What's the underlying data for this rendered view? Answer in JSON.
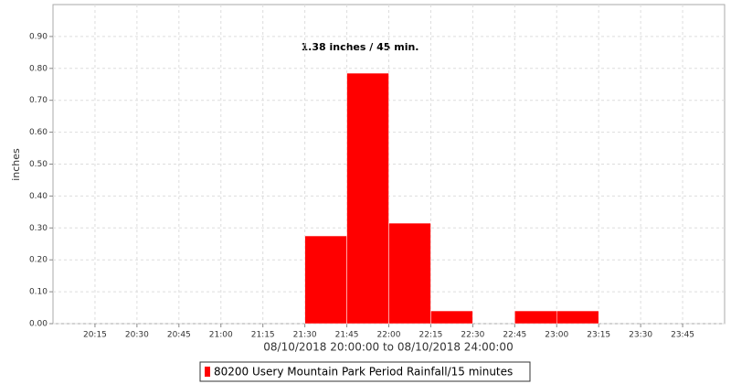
{
  "chart_data": {
    "type": "histogram",
    "annotation": "1.38 inches / 45 min.",
    "y_label": "inches",
    "x_label": "08/10/2018 20:00:00 to 08/10/2018 24:00:00",
    "bins": [
      "21:30",
      "21:45",
      "22:00",
      "22:15",
      "22:30",
      "22:45",
      "23:00",
      "23:15"
    ],
    "series": [
      {
        "name": "80200 Usery Mountain Park Period Rainfall/15 minutes",
        "color": "#ff0000",
        "values": [
          0.275,
          0.785,
          0.315,
          0.04,
          0,
          0.04,
          0.04
        ]
      }
    ],
    "xlim": [
      "20:00",
      "24:00"
    ],
    "xticks": [
      "20:15",
      "20:30",
      "20:45",
      "21:00",
      "21:15",
      "21:30",
      "21:45",
      "22:00",
      "22:15",
      "22:30",
      "22:45",
      "23:00",
      "23:15",
      "23:30",
      "23:45"
    ],
    "ylim": [
      0,
      1.0
    ],
    "yticks": [
      {
        "value": 0,
        "label": "0.00"
      },
      {
        "value": 0.1,
        "label": "0.10"
      },
      {
        "value": 0.2,
        "label": "0.20"
      },
      {
        "value": 0.3,
        "label": "0.30"
      },
      {
        "value": 0.4,
        "label": "0.40"
      },
      {
        "value": 0.5,
        "label": "0.50"
      },
      {
        "value": 0.6,
        "label": "0.60"
      },
      {
        "value": 0.7,
        "label": "0.70"
      },
      {
        "value": 0.8,
        "label": "0.80"
      },
      {
        "value": 0.9,
        "label": "0.90"
      }
    ],
    "grid": true,
    "legend": "bottom"
  }
}
